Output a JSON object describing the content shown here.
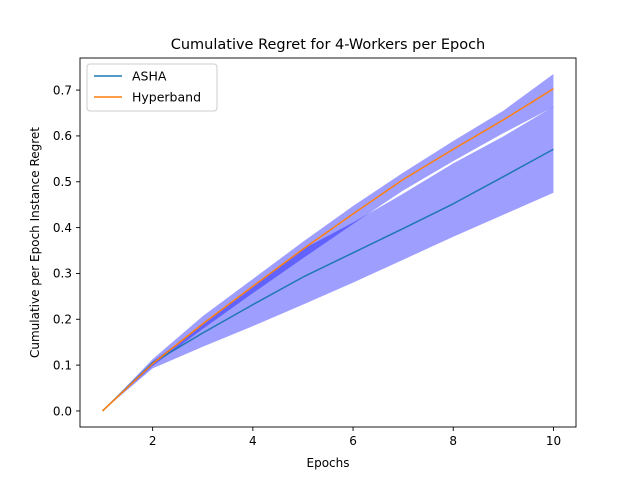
{
  "chart_data": {
    "type": "line",
    "title": "Cumulative Regret for 4-Workers per Epoch",
    "xlabel": "Epochs",
    "ylabel": "Cumulative per Epoch Instance Regret",
    "xlim": [
      0.55,
      10.45
    ],
    "ylim": [
      -0.035,
      0.77
    ],
    "xticks": [
      2,
      4,
      6,
      8,
      10
    ],
    "yticks": [
      0.0,
      0.1,
      0.2,
      0.3,
      0.4,
      0.5,
      0.6,
      0.7
    ],
    "grid": false,
    "legend_position": "top-left",
    "x": [
      1,
      2,
      3,
      4,
      5,
      6,
      7,
      8,
      9,
      10
    ],
    "series": [
      {
        "name": "ASHA",
        "color": "#1f77b4",
        "values": [
          0.0,
          0.105,
          0.17,
          0.232,
          0.292,
          0.345,
          0.398,
          0.452,
          0.511,
          0.571
        ],
        "band_lower": [
          0.0,
          0.093,
          0.14,
          0.185,
          0.232,
          0.28,
          0.33,
          0.38,
          0.428,
          0.476
        ],
        "band_upper": [
          0.0,
          0.108,
          0.188,
          0.27,
          0.353,
          0.411,
          0.474,
          0.54,
          0.599,
          0.664
        ],
        "band_color": "#0000ff"
      },
      {
        "name": "Hyperband",
        "color": "#ff7f0e",
        "values": [
          0.0,
          0.103,
          0.19,
          0.272,
          0.353,
          0.43,
          0.505,
          0.571,
          0.635,
          0.703
        ],
        "band_lower": [
          0.0,
          0.098,
          0.179,
          0.257,
          0.333,
          0.408,
          0.481,
          0.545,
          0.606,
          0.663
        ],
        "band_upper": [
          0.0,
          0.113,
          0.207,
          0.288,
          0.369,
          0.447,
          0.52,
          0.589,
          0.655,
          0.735
        ],
        "band_color": "#0000ff"
      }
    ]
  }
}
